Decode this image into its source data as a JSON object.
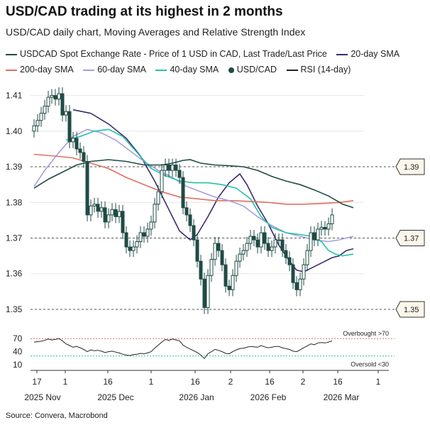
{
  "header": {
    "title": "USD/CAD trading at its highest in 2 months",
    "subtitle": "USD/CAD daily chart, Moving Averages and Relative Strength Index"
  },
  "legend": [
    {
      "label": "USDCAD Spot Exchange Rate - Price of 1 USD in CAD, Last Trade/Last Price",
      "color": "#1f4b44",
      "kind": "line"
    },
    {
      "label": "20-day SMA",
      "color": "#3d2a6e",
      "kind": "line"
    },
    {
      "label": "200-day SMA",
      "color": "#e07060",
      "kind": "line"
    },
    {
      "label": "60-day SMA",
      "color": "#a89ce0",
      "kind": "line"
    },
    {
      "label": "40-day SMA",
      "color": "#22c4a4",
      "kind": "line"
    },
    {
      "label": "USD/CAD",
      "color": "#1f4b44",
      "kind": "candle"
    },
    {
      "label": "RSI (14-day)",
      "color": "#222222",
      "kind": "line"
    }
  ],
  "source": "Source: Convera, Macrobond",
  "chart_data": {
    "type": "line",
    "price_axis": {
      "ticks": [
        "1.35",
        "1.36",
        "1.37",
        "1.38",
        "1.39",
        "1.40",
        "1.41"
      ],
      "ylim": [
        1.348,
        1.4135
      ]
    },
    "rsi_axis": {
      "ticks": [
        "10",
        "40",
        "70"
      ],
      "ylim": [
        0,
        90
      ]
    },
    "x_axis": {
      "tick_labels": [
        "17",
        "1",
        "16",
        "1",
        "16",
        "2",
        "16",
        "2",
        "16",
        "1",
        "16",
        "1"
      ],
      "month_labels": [
        "2025 Nov",
        "2025 Dec",
        "2026 Jan",
        "2026 Feb",
        "2026 Mar"
      ]
    },
    "reference_levels": [
      {
        "value": 1.39,
        "label": "1.39"
      },
      {
        "value": 1.37,
        "label": "1.37"
      },
      {
        "value": 1.35,
        "label": "1.35"
      }
    ],
    "rsi_levels": [
      {
        "value": 70,
        "label": "Overbought >70",
        "color": "#e07060"
      },
      {
        "value": 30,
        "label": "Oversold <30",
        "color": "#22c4a4"
      }
    ],
    "series": [
      {
        "name": "20-day SMA",
        "color": "#3d2a6e",
        "points": [
          [
            0,
            1.406
          ],
          [
            5,
            1.405
          ],
          [
            10,
            1.402
          ],
          [
            15,
            1.398
          ],
          [
            19,
            1.393
          ],
          [
            23,
            1.386
          ],
          [
            27,
            1.378
          ],
          [
            30,
            1.372
          ],
          [
            33,
            1.3695
          ],
          [
            35,
            1.371
          ],
          [
            38,
            1.376
          ],
          [
            41,
            1.3815
          ],
          [
            44,
            1.3855
          ],
          [
            47,
            1.388
          ],
          [
            49,
            1.385
          ],
          [
            52,
            1.379
          ],
          [
            55,
            1.374
          ],
          [
            58,
            1.368
          ],
          [
            61,
            1.3635
          ],
          [
            63,
            1.361
          ],
          [
            65,
            1.3605
          ],
          [
            67,
            1.3615
          ],
          [
            70,
            1.363
          ],
          [
            73,
            1.3645
          ],
          [
            75,
            1.365
          ],
          [
            77,
            1.3665
          ],
          [
            79,
            1.367
          ]
        ]
      },
      {
        "name": "200-day SMA",
        "color": "#e07060",
        "points": [
          [
            -11,
            1.3935
          ],
          [
            -5,
            1.393
          ],
          [
            0,
            1.3925
          ],
          [
            5,
            1.391
          ],
          [
            10,
            1.3895
          ],
          [
            15,
            1.387
          ],
          [
            20,
            1.385
          ],
          [
            25,
            1.383
          ],
          [
            30,
            1.3815
          ],
          [
            35,
            1.381
          ],
          [
            40,
            1.3805
          ],
          [
            45,
            1.3805
          ],
          [
            50,
            1.3803
          ],
          [
            55,
            1.38
          ],
          [
            60,
            1.3795
          ],
          [
            65,
            1.3795
          ],
          [
            70,
            1.3797
          ],
          [
            75,
            1.38
          ],
          [
            79,
            1.3805
          ]
        ]
      },
      {
        "name": "60-day SMA",
        "color": "#a89ce0",
        "points": [
          [
            -11,
            1.3845
          ],
          [
            -8,
            1.389
          ],
          [
            -4,
            1.394
          ],
          [
            0,
            1.3985
          ],
          [
            4,
            1.4005
          ],
          [
            8,
            1.3995
          ],
          [
            12,
            1.3975
          ],
          [
            16,
            1.3945
          ],
          [
            20,
            1.3915
          ],
          [
            24,
            1.389
          ],
          [
            28,
            1.387
          ],
          [
            32,
            1.3845
          ],
          [
            36,
            1.383
          ],
          [
            40,
            1.3815
          ],
          [
            44,
            1.3805
          ],
          [
            48,
            1.379
          ],
          [
            52,
            1.376
          ],
          [
            56,
            1.3735
          ],
          [
            60,
            1.3715
          ],
          [
            64,
            1.3705
          ],
          [
            68,
            1.3695
          ],
          [
            72,
            1.369
          ],
          [
            75,
            1.3695
          ],
          [
            79,
            1.3705
          ]
        ]
      },
      {
        "name": "40-day SMA",
        "color": "#22c4a4",
        "points": [
          [
            -2,
            1.3975
          ],
          [
            2,
            1.3985
          ],
          [
            6,
            1.4
          ],
          [
            10,
            1.4005
          ],
          [
            14,
            1.3985
          ],
          [
            18,
            1.394
          ],
          [
            22,
            1.3895
          ],
          [
            26,
            1.3875
          ],
          [
            30,
            1.386
          ],
          [
            34,
            1.3855
          ],
          [
            38,
            1.3855
          ],
          [
            42,
            1.385
          ],
          [
            46,
            1.384
          ],
          [
            50,
            1.381
          ],
          [
            53,
            1.376
          ],
          [
            56,
            1.373
          ],
          [
            60,
            1.3715
          ],
          [
            64,
            1.371
          ],
          [
            67,
            1.3705
          ],
          [
            70,
            1.369
          ],
          [
            72,
            1.3665
          ],
          [
            74,
            1.3655
          ],
          [
            76,
            1.365
          ],
          [
            79,
            1.3655
          ]
        ]
      },
      {
        "name": "USDCAD Spot Exchange Rate - Price of 1 USD in CAD, Last Trade/Last Price",
        "color": "#1f4b44",
        "points": [
          [
            -11,
            1.384
          ],
          [
            -7,
            1.3865
          ],
          [
            -3,
            1.3885
          ],
          [
            1,
            1.3905
          ],
          [
            5,
            1.3915
          ],
          [
            10,
            1.392
          ],
          [
            15,
            1.3915
          ],
          [
            20,
            1.3905
          ],
          [
            25,
            1.3905
          ],
          [
            28,
            1.391
          ],
          [
            31,
            1.3918
          ],
          [
            33,
            1.392
          ],
          [
            36,
            1.391
          ],
          [
            40,
            1.3905
          ],
          [
            44,
            1.3903
          ],
          [
            48,
            1.39
          ],
          [
            52,
            1.389
          ],
          [
            56,
            1.3873
          ],
          [
            60,
            1.386
          ],
          [
            64,
            1.385
          ],
          [
            68,
            1.3835
          ],
          [
            72,
            1.3818
          ],
          [
            76,
            1.3795
          ],
          [
            79,
            1.3785
          ]
        ]
      }
    ],
    "candles": [
      [
        -11,
        1.4,
        1.4015
      ],
      [
        -10,
        1.4015,
        1.403
      ],
      [
        -9,
        1.403,
        1.405
      ],
      [
        -8,
        1.405,
        1.407
      ],
      [
        -7,
        1.407,
        1.4095
      ],
      [
        -6,
        1.4095,
        1.41
      ],
      [
        -5,
        1.41,
        1.409
      ],
      [
        -4,
        1.409,
        1.4105
      ],
      [
        -3,
        1.4105,
        1.4045
      ],
      [
        -2,
        1.4045,
        1.4055
      ],
      [
        -1,
        1.4055,
        1.397
      ],
      [
        0,
        1.397,
        1.398
      ],
      [
        1,
        1.398,
        1.395
      ],
      [
        2,
        1.395,
        1.394
      ],
      [
        3,
        1.394,
        1.3915
      ],
      [
        4,
        1.3915,
        1.3765
      ],
      [
        5,
        1.3765,
        1.379
      ],
      [
        6,
        1.379,
        1.3795
      ],
      [
        7,
        1.3795,
        1.3775
      ],
      [
        8,
        1.3775,
        1.3785
      ],
      [
        9,
        1.3785,
        1.3745
      ],
      [
        10,
        1.3745,
        1.3765
      ],
      [
        11,
        1.3765,
        1.378
      ],
      [
        12,
        1.378,
        1.376
      ],
      [
        13,
        1.376,
        1.3775
      ],
      [
        14,
        1.3775,
        1.3715
      ],
      [
        15,
        1.3715,
        1.3675
      ],
      [
        16,
        1.3675,
        1.3665
      ],
      [
        17,
        1.3665,
        1.3675
      ],
      [
        18,
        1.3675,
        1.369
      ],
      [
        19,
        1.369,
        1.3715
      ],
      [
        20,
        1.3715,
        1.3705
      ],
      [
        21,
        1.3705,
        1.3725
      ],
      [
        22,
        1.3725,
        1.3745
      ],
      [
        23,
        1.3745,
        1.3795
      ],
      [
        24,
        1.3795,
        1.383
      ],
      [
        25,
        1.383,
        1.389
      ],
      [
        26,
        1.389,
        1.3905
      ],
      [
        27,
        1.3905,
        1.389
      ],
      [
        28,
        1.389,
        1.3905
      ],
      [
        29,
        1.3905,
        1.389
      ],
      [
        30,
        1.389,
        1.387
      ],
      [
        31,
        1.387,
        1.3785
      ],
      [
        32,
        1.3785,
        1.3765
      ],
      [
        33,
        1.3765,
        1.3735
      ],
      [
        34,
        1.3735,
        1.3695
      ],
      [
        35,
        1.3695,
        1.3635
      ],
      [
        36,
        1.3635,
        1.3585
      ],
      [
        37,
        1.3585,
        1.3505
      ],
      [
        38,
        1.3505,
        1.3595
      ],
      [
        39,
        1.3595,
        1.364
      ],
      [
        40,
        1.364,
        1.3685
      ],
      [
        41,
        1.3685,
        1.3665
      ],
      [
        42,
        1.3665,
        1.3625
      ],
      [
        43,
        1.3625,
        1.3565
      ],
      [
        44,
        1.3565,
        1.3555
      ],
      [
        45,
        1.3555,
        1.3595
      ],
      [
        46,
        1.3595,
        1.3635
      ],
      [
        47,
        1.3635,
        1.3655
      ],
      [
        48,
        1.3655,
        1.3665
      ],
      [
        49,
        1.3665,
        1.3685
      ],
      [
        50,
        1.3685,
        1.3705
      ],
      [
        51,
        1.3705,
        1.3695
      ],
      [
        52,
        1.3695,
        1.3675
      ],
      [
        53,
        1.3675,
        1.3715
      ],
      [
        54,
        1.3715,
        1.3685
      ],
      [
        55,
        1.3685,
        1.3665
      ],
      [
        56,
        1.3665,
        1.3675
      ],
      [
        57,
        1.3675,
        1.3695
      ],
      [
        58,
        1.3695,
        1.3695
      ],
      [
        59,
        1.3695,
        1.3665
      ],
      [
        60,
        1.3665,
        1.3645
      ],
      [
        61,
        1.3645,
        1.3625
      ],
      [
        62,
        1.3625,
        1.3575
      ],
      [
        63,
        1.3575,
        1.3555
      ],
      [
        64,
        1.3555,
        1.3585
      ],
      [
        65,
        1.3585,
        1.3625
      ],
      [
        66,
        1.3625,
        1.3665
      ],
      [
        67,
        1.3665,
        1.3715
      ],
      [
        68,
        1.3715,
        1.3695
      ],
      [
        69,
        1.3695,
        1.3725
      ],
      [
        70,
        1.3725,
        1.373
      ],
      [
        71,
        1.373,
        1.3725
      ],
      [
        72,
        1.3725,
        1.374
      ],
      [
        73,
        1.374,
        1.3765
      ]
    ],
    "rsi": [
      [
        -11,
        62
      ],
      [
        -10,
        63
      ],
      [
        -9,
        64
      ],
      [
        -8,
        66
      ],
      [
        -7,
        69
      ],
      [
        -6,
        67
      ],
      [
        -5,
        68
      ],
      [
        -4,
        70
      ],
      [
        -3,
        65
      ],
      [
        -2,
        58
      ],
      [
        -1,
        54
      ],
      [
        0,
        50
      ],
      [
        1,
        52
      ],
      [
        2,
        49
      ],
      [
        3,
        45
      ],
      [
        4,
        40
      ],
      [
        5,
        44
      ],
      [
        6,
        42
      ],
      [
        7,
        43
      ],
      [
        8,
        41
      ],
      [
        9,
        38
      ],
      [
        10,
        40
      ],
      [
        11,
        41
      ],
      [
        12,
        39
      ],
      [
        13,
        37
      ],
      [
        14,
        34
      ],
      [
        15,
        32
      ],
      [
        16,
        31
      ],
      [
        17,
        33
      ],
      [
        18,
        34
      ],
      [
        19,
        36
      ],
      [
        20,
        35
      ],
      [
        21,
        37
      ],
      [
        22,
        40
      ],
      [
        23,
        48
      ],
      [
        24,
        55
      ],
      [
        25,
        62
      ],
      [
        26,
        68
      ],
      [
        27,
        66
      ],
      [
        28,
        69
      ],
      [
        29,
        67
      ],
      [
        30,
        65
      ],
      [
        31,
        55
      ],
      [
        32,
        50
      ],
      [
        33,
        46
      ],
      [
        34,
        42
      ],
      [
        35,
        38
      ],
      [
        36,
        32
      ],
      [
        37,
        24
      ],
      [
        38,
        35
      ],
      [
        39,
        40
      ],
      [
        40,
        45
      ],
      [
        41,
        43
      ],
      [
        42,
        40
      ],
      [
        43,
        36
      ],
      [
        44,
        35
      ],
      [
        45,
        40
      ],
      [
        46,
        44
      ],
      [
        47,
        47
      ],
      [
        48,
        48
      ],
      [
        49,
        50
      ],
      [
        50,
        52
      ],
      [
        51,
        51
      ],
      [
        52,
        50
      ],
      [
        53,
        54
      ],
      [
        54,
        51
      ],
      [
        55,
        49
      ],
      [
        56,
        50
      ],
      [
        57,
        52
      ],
      [
        58,
        52
      ],
      [
        59,
        49
      ],
      [
        60,
        47
      ],
      [
        61,
        45
      ],
      [
        62,
        41
      ],
      [
        63,
        40
      ],
      [
        64,
        44
      ],
      [
        65,
        49
      ],
      [
        66,
        53
      ],
      [
        67,
        58
      ],
      [
        68,
        56
      ],
      [
        69,
        60
      ],
      [
        70,
        61
      ],
      [
        71,
        60
      ],
      [
        72,
        62
      ],
      [
        73,
        65
      ]
    ]
  }
}
